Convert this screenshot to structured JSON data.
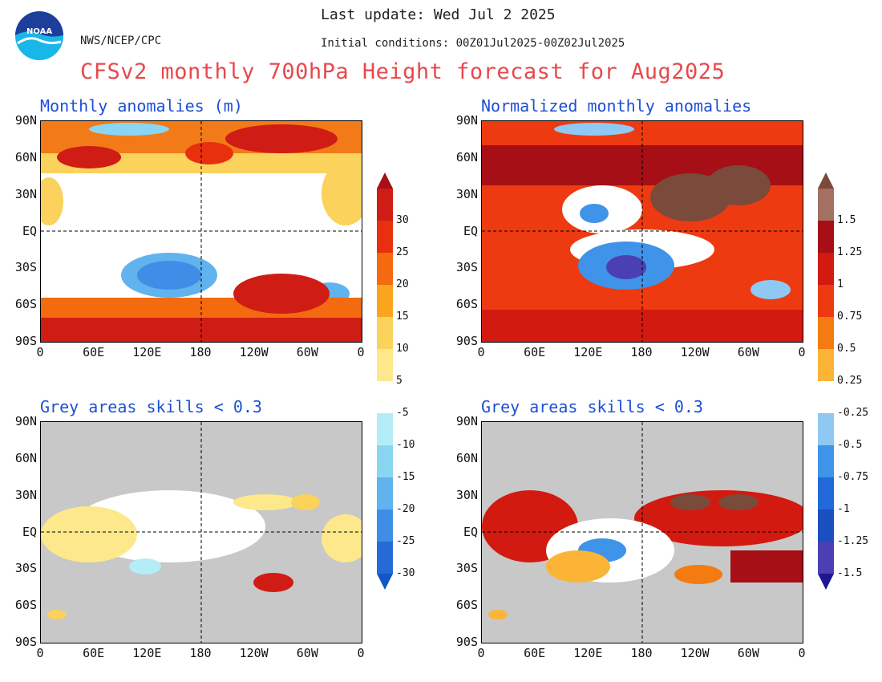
{
  "header": {
    "last_update": "Last update: Wed Jul 2 2025",
    "initial_conditions": "Initial conditions: 00Z01Jul2025-00Z02Jul2025",
    "agency": "NWS/NCEP/CPC",
    "title": "CFSv2 monthly 700hPa Height forecast for Aug2025",
    "logo_text": "NOAA"
  },
  "panels": {
    "top_left_title": "Monthly anomalies (m)",
    "top_right_title": "Normalized monthly anomalies",
    "bottom_left_title": "Grey areas skills < 0.3",
    "bottom_right_title": "Grey areas skills < 0.3"
  },
  "axes": {
    "lat_labels": [
      "90N",
      "60N",
      "30N",
      "EQ",
      "30S",
      "60S",
      "90S"
    ],
    "lon_labels": [
      "0",
      "60E",
      "120E",
      "180",
      "120W",
      "60W",
      "0"
    ]
  },
  "colorbar_left": {
    "labels": [
      "30",
      "25",
      "20",
      "15",
      "10",
      "5",
      "-5",
      "-10",
      "-15",
      "-20",
      "-25",
      "-30"
    ],
    "colors": [
      "#a50f15",
      "#cf1c14",
      "#e8300e",
      "#f46a0f",
      "#fba51e",
      "#fbd25c",
      "#fde88b",
      "#ffffff",
      "#b4ecf7",
      "#8ad5f2",
      "#60b3ee",
      "#3e8de6",
      "#246bd8",
      "#1356c6"
    ]
  },
  "colorbar_right": {
    "labels": [
      "1.5",
      "1.25",
      "1",
      "0.75",
      "0.5",
      "0.25",
      "-0.25",
      "-0.5",
      "-0.75",
      "-1",
      "-1.25",
      "-1.5"
    ],
    "colors": [
      "#7a4a3a",
      "#a47062",
      "#a50f15",
      "#d21a10",
      "#ee3a10",
      "#f47a12",
      "#fbb435",
      "#ffffff",
      "#8fc8f3",
      "#3f93e9",
      "#2269d9",
      "#1a4fbf",
      "#4b3fb4",
      "#1f1696"
    ]
  },
  "colors": {
    "title_red": "#e8484b",
    "panel_title_blue": "#1c4fd6",
    "grey_mask": "#c8c8c8"
  }
}
